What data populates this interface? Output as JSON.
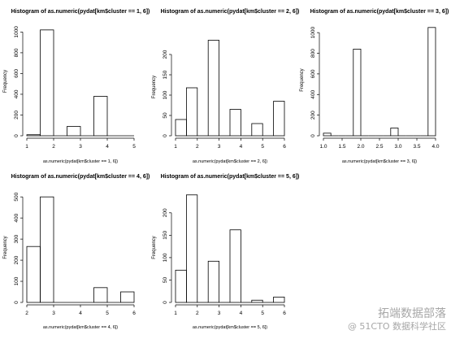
{
  "chart_data": [
    {
      "type": "bar",
      "title": "Histogram of as.numeric(pydat[km$cluster == 1, 6])",
      "xlabel": "as.numeric(pydat[km$cluster == 1, 6])",
      "ylabel": "Frequency",
      "bins": [
        {
          "from": 1.0,
          "to": 1.5,
          "count": 10
        },
        {
          "from": 1.5,
          "to": 2.0,
          "count": 1020
        },
        {
          "from": 2.0,
          "to": 2.5,
          "count": 0
        },
        {
          "from": 2.5,
          "to": 3.0,
          "count": 90
        },
        {
          "from": 3.0,
          "to": 3.5,
          "count": 0
        },
        {
          "from": 3.5,
          "to": 4.0,
          "count": 380
        },
        {
          "from": 4.0,
          "to": 4.5,
          "count": 0
        },
        {
          "from": 4.5,
          "to": 5.0,
          "count": 0
        }
      ],
      "xlim": [
        1,
        5
      ],
      "ylim": [
        0,
        1050
      ],
      "xticks": [
        "1",
        "2",
        "3",
        "4",
        "5"
      ],
      "yticks": [
        "0",
        "200",
        "400",
        "600",
        "800",
        "1000"
      ]
    },
    {
      "type": "bar",
      "title": "Histogram of as.numeric(pydat[km$cluster == 2, 6])",
      "xlabel": "as.numeric(pydat[km$cluster == 2, 6])",
      "ylabel": "Frequency",
      "bins": [
        {
          "from": 1.0,
          "to": 1.5,
          "count": 40
        },
        {
          "from": 1.5,
          "to": 2.0,
          "count": 118
        },
        {
          "from": 2.0,
          "to": 2.5,
          "count": 0
        },
        {
          "from": 2.5,
          "to": 3.0,
          "count": 235
        },
        {
          "from": 3.0,
          "to": 3.5,
          "count": 0
        },
        {
          "from": 3.5,
          "to": 4.0,
          "count": 65
        },
        {
          "from": 4.0,
          "to": 4.5,
          "count": 0
        },
        {
          "from": 4.5,
          "to": 5.0,
          "count": 30
        },
        {
          "from": 5.0,
          "to": 5.5,
          "count": 0
        },
        {
          "from": 5.5,
          "to": 6.0,
          "count": 85
        }
      ],
      "xlim": [
        1,
        6
      ],
      "ylim": [
        0,
        240
      ],
      "xticks": [
        "1",
        "2",
        "3",
        "4",
        "5",
        "6"
      ],
      "yticks": [
        "0",
        "50",
        "100",
        "150",
        "200"
      ]
    },
    {
      "type": "bar",
      "title": "Histogram of as.numeric(pydat[km$cluster == 3, 6])",
      "xlabel": "as.numeric(pydat[km$cluster == 3, 6])",
      "ylabel": "Frequency",
      "bins": [
        {
          "from": 1.0,
          "to": 1.2,
          "count": 25
        },
        {
          "from": 1.2,
          "to": 1.4,
          "count": 0
        },
        {
          "from": 1.4,
          "to": 1.6,
          "count": 0
        },
        {
          "from": 1.6,
          "to": 1.8,
          "count": 0
        },
        {
          "from": 1.8,
          "to": 2.0,
          "count": 840
        },
        {
          "from": 2.0,
          "to": 2.2,
          "count": 0
        },
        {
          "from": 2.2,
          "to": 2.4,
          "count": 0
        },
        {
          "from": 2.4,
          "to": 2.6,
          "count": 0
        },
        {
          "from": 2.6,
          "to": 2.8,
          "count": 0
        },
        {
          "from": 2.8,
          "to": 3.0,
          "count": 75
        },
        {
          "from": 3.0,
          "to": 3.2,
          "count": 0
        },
        {
          "from": 3.2,
          "to": 3.4,
          "count": 0
        },
        {
          "from": 3.4,
          "to": 3.6,
          "count": 0
        },
        {
          "from": 3.6,
          "to": 3.8,
          "count": 0
        },
        {
          "from": 3.8,
          "to": 4.0,
          "count": 1050
        }
      ],
      "xlim": [
        1,
        4
      ],
      "ylim": [
        0,
        1080
      ],
      "xticks": [
        "1.0",
        "1.5",
        "2.0",
        "2.5",
        "3.0",
        "3.5",
        "4.0"
      ],
      "yticks": [
        "0",
        "200",
        "400",
        "600",
        "800",
        "1000"
      ]
    },
    {
      "type": "bar",
      "title": "Histogram of as.numeric(pydat[km$cluster == 4, 6])",
      "xlabel": "as.numeric(pydat[km$cluster == 4, 6])",
      "ylabel": "Frequency",
      "bins": [
        {
          "from": 2.0,
          "to": 2.5,
          "count": 265
        },
        {
          "from": 2.5,
          "to": 3.0,
          "count": 500
        },
        {
          "from": 3.0,
          "to": 3.5,
          "count": 0
        },
        {
          "from": 3.5,
          "to": 4.0,
          "count": 0
        },
        {
          "from": 4.0,
          "to": 4.5,
          "count": 0
        },
        {
          "from": 4.5,
          "to": 5.0,
          "count": 70
        },
        {
          "from": 5.0,
          "to": 5.5,
          "count": 0
        },
        {
          "from": 5.5,
          "to": 6.0,
          "count": 50
        }
      ],
      "xlim": [
        2,
        6
      ],
      "ylim": [
        0,
        520
      ],
      "xticks": [
        "2",
        "3",
        "4",
        "5",
        "6"
      ],
      "yticks": [
        "0",
        "100",
        "200",
        "300",
        "400",
        "500"
      ]
    },
    {
      "type": "bar",
      "title": "Histogram of as.numeric(pydat[km$cluster == 5, 6])",
      "xlabel": "as.numeric(pydat[km$cluster == 5, 6])",
      "ylabel": "Frequency",
      "bins": [
        {
          "from": 1.0,
          "to": 1.5,
          "count": 72
        },
        {
          "from": 1.5,
          "to": 2.0,
          "count": 240
        },
        {
          "from": 2.0,
          "to": 2.5,
          "count": 0
        },
        {
          "from": 2.5,
          "to": 3.0,
          "count": 92
        },
        {
          "from": 3.0,
          "to": 3.5,
          "count": 0
        },
        {
          "from": 3.5,
          "to": 4.0,
          "count": 162
        },
        {
          "from": 4.0,
          "to": 4.5,
          "count": 0
        },
        {
          "from": 4.5,
          "to": 5.0,
          "count": 5
        },
        {
          "from": 5.0,
          "to": 5.5,
          "count": 0
        },
        {
          "from": 5.5,
          "to": 6.0,
          "count": 12
        }
      ],
      "xlim": [
        1,
        6
      ],
      "ylim": [
        0,
        245
      ],
      "xticks": [
        "1",
        "2",
        "3",
        "4",
        "5",
        "6"
      ],
      "yticks": [
        "0",
        "50",
        "100",
        "150",
        "200"
      ]
    }
  ],
  "watermark": {
    "line1": "拓端数据部落",
    "line2": "@ 51CTO 数据科学社区"
  }
}
